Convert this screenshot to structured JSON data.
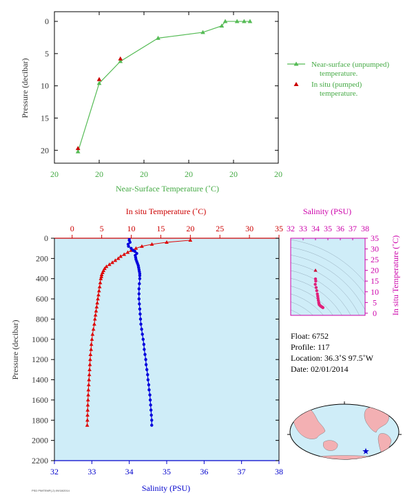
{
  "chart_data": [
    {
      "type": "line",
      "xlabel": "Near-Surface Temperature (˚C)",
      "ylabel": "Pressure (decibar)",
      "x_tick_labels": [
        "20",
        "20",
        "20",
        "20",
        "20",
        "20"
      ],
      "x_range": [
        19.05,
        20.0
      ],
      "ylim": [
        22,
        -1.5
      ],
      "y_ticks": [
        0,
        5,
        10,
        15,
        20
      ],
      "legend_placement": "right",
      "series": [
        {
          "name": "Near-surface (unpumped) temperature.",
          "color": "#55bb55",
          "marker": "triangle",
          "points": [
            [
              19.15,
              20.2
            ],
            [
              19.24,
              9.6
            ],
            [
              19.33,
              6.2
            ],
            [
              19.49,
              2.6
            ],
            [
              19.68,
              1.7
            ],
            [
              19.76,
              0.7
            ],
            [
              19.775,
              0.0
            ],
            [
              19.825,
              0.0
            ],
            [
              19.855,
              0.0
            ],
            [
              19.88,
              0.0
            ]
          ]
        },
        {
          "name": "In situ (pumped) temperature.",
          "color": "#cc0000",
          "marker": "triangle",
          "points": [
            [
              19.15,
              19.7
            ],
            [
              19.24,
              9.0
            ],
            [
              19.33,
              5.8
            ]
          ]
        }
      ]
    },
    {
      "type": "line",
      "top_axis_label": "In situ Temperature (˚C)",
      "bottom_axis_label": "Salinity (PSU)",
      "ylabel": "Pressure (decibar)",
      "temperature_range": [
        -3.0,
        35.0
      ],
      "temperature_ticks": [
        0,
        5,
        10,
        15,
        20,
        25,
        30,
        35
      ],
      "salinity_range": [
        32,
        38
      ],
      "salinity_ticks": [
        32,
        33,
        34,
        35,
        36,
        37,
        38
      ],
      "ylim": [
        2200,
        0
      ],
      "y_ticks": [
        0,
        200,
        400,
        600,
        800,
        1000,
        1200,
        1400,
        1600,
        1800,
        2000,
        2200
      ],
      "series": [
        {
          "name": "In situ Temperature",
          "color": "#dd0000",
          "marker": "triangle",
          "points": [
            [
              20.0,
              20
            ],
            [
              16.0,
              40
            ],
            [
              13.5,
              60
            ],
            [
              11.8,
              80
            ],
            [
              10.8,
              100
            ],
            [
              10.0,
              120
            ],
            [
              9.4,
              140
            ],
            [
              8.8,
              160
            ],
            [
              8.2,
              180
            ],
            [
              7.8,
              200
            ],
            [
              7.3,
              220
            ],
            [
              6.8,
              240
            ],
            [
              6.3,
              260
            ],
            [
              5.8,
              280
            ],
            [
              5.5,
              300
            ],
            [
              5.3,
              320
            ],
            [
              5.15,
              340
            ],
            [
              5.0,
              360
            ],
            [
              4.95,
              380
            ],
            [
              4.85,
              400
            ],
            [
              4.75,
              440
            ],
            [
              4.65,
              480
            ],
            [
              4.55,
              520
            ],
            [
              4.45,
              560
            ],
            [
              4.35,
              600
            ],
            [
              4.25,
              640
            ],
            [
              4.15,
              680
            ],
            [
              4.05,
              720
            ],
            [
              3.95,
              760
            ],
            [
              3.85,
              800
            ],
            [
              3.75,
              850
            ],
            [
              3.6,
              900
            ],
            [
              3.45,
              950
            ],
            [
              3.35,
              1000
            ],
            [
              3.25,
              1050
            ],
            [
              3.2,
              1100
            ],
            [
              3.1,
              1150
            ],
            [
              3.05,
              1200
            ],
            [
              3.0,
              1250
            ],
            [
              2.95,
              1300
            ],
            [
              2.9,
              1350
            ],
            [
              2.85,
              1400
            ],
            [
              2.8,
              1450
            ],
            [
              2.75,
              1500
            ],
            [
              2.72,
              1550
            ],
            [
              2.68,
              1600
            ],
            [
              2.65,
              1650
            ],
            [
              2.62,
              1700
            ],
            [
              2.6,
              1750
            ],
            [
              2.58,
              1800
            ],
            [
              2.55,
              1850
            ]
          ]
        },
        {
          "name": "Salinity",
          "color": "#0000dd",
          "marker": "dot",
          "points": [
            [
              34.0,
              0
            ],
            [
              34.0,
              20
            ],
            [
              34.02,
              40
            ],
            [
              33.97,
              60
            ],
            [
              33.98,
              80
            ],
            [
              34.05,
              100
            ],
            [
              34.1,
              120
            ],
            [
              34.15,
              130
            ],
            [
              34.2,
              150
            ],
            [
              34.16,
              170
            ],
            [
              34.17,
              190
            ],
            [
              34.18,
              210
            ],
            [
              34.2,
              230
            ],
            [
              34.22,
              250
            ],
            [
              34.24,
              270
            ],
            [
              34.25,
              290
            ],
            [
              34.26,
              310
            ],
            [
              34.27,
              330
            ],
            [
              34.28,
              350
            ],
            [
              34.28,
              370
            ],
            [
              34.28,
              400
            ],
            [
              34.27,
              450
            ],
            [
              34.26,
              500
            ],
            [
              34.26,
              550
            ],
            [
              34.26,
              600
            ],
            [
              34.27,
              650
            ],
            [
              34.28,
              700
            ],
            [
              34.29,
              750
            ],
            [
              34.3,
              800
            ],
            [
              34.31,
              850
            ],
            [
              34.33,
              900
            ],
            [
              34.35,
              950
            ],
            [
              34.37,
              1000
            ],
            [
              34.39,
              1050
            ],
            [
              34.4,
              1100
            ],
            [
              34.42,
              1150
            ],
            [
              34.44,
              1200
            ],
            [
              34.45,
              1250
            ],
            [
              34.47,
              1300
            ],
            [
              34.49,
              1350
            ],
            [
              34.5,
              1400
            ],
            [
              34.52,
              1450
            ],
            [
              34.53,
              1500
            ],
            [
              34.55,
              1550
            ],
            [
              34.56,
              1600
            ],
            [
              34.57,
              1650
            ],
            [
              34.58,
              1700
            ],
            [
              34.59,
              1750
            ],
            [
              34.6,
              1800
            ],
            [
              34.6,
              1850
            ]
          ]
        }
      ]
    },
    {
      "type": "scatter",
      "xlabel": "Salinity (PSU)",
      "ylabel": "In situ Temperature (˚C)",
      "xlim": [
        32,
        38
      ],
      "x_ticks": [
        32,
        33,
        34,
        35,
        36,
        37,
        38
      ],
      "ylim": [
        -1,
        35
      ],
      "y_ticks": [
        0,
        5,
        10,
        15,
        20,
        25,
        30,
        35
      ],
      "points": [
        [
          34.0,
          20.0
        ],
        [
          34.0,
          16.0
        ],
        [
          34.02,
          15.0
        ],
        [
          33.98,
          13.5
        ],
        [
          34.05,
          12.0
        ],
        [
          34.1,
          10.5
        ],
        [
          34.15,
          9.0
        ],
        [
          34.18,
          8.0
        ],
        [
          34.2,
          7.0
        ],
        [
          34.23,
          6.0
        ],
        [
          34.26,
          5.0
        ],
        [
          34.28,
          4.5
        ],
        [
          34.3,
          4.0
        ],
        [
          34.35,
          3.7
        ],
        [
          34.4,
          3.4
        ],
        [
          34.45,
          3.2
        ],
        [
          34.5,
          3.0
        ],
        [
          34.55,
          2.8
        ],
        [
          34.6,
          2.6
        ]
      ]
    }
  ],
  "float_info": {
    "float": "Float:  6752",
    "profile": "Profile:  117",
    "location": "Location:  36.3˚S  97.5˚W",
    "date": "Date:  02/01/2014"
  },
  "map": {
    "marker": "star",
    "marker_color": "#0000cc"
  },
  "footer_text": "PSD  PIMTEMP(-2)  09/18/2014"
}
